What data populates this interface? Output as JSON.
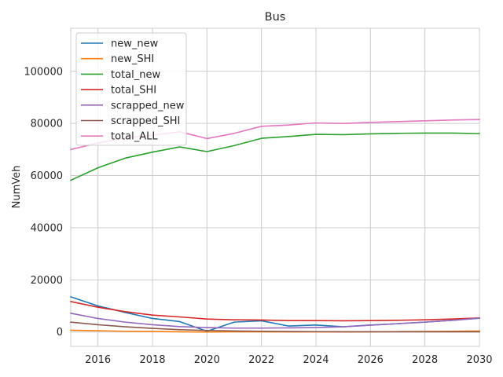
{
  "chart_data": {
    "type": "line",
    "title": "Bus",
    "xlabel": "",
    "ylabel": "NumVeh",
    "xlim": [
      2015,
      2030
    ],
    "ylim": [
      -5500,
      116500
    ],
    "xticks": [
      2016,
      2018,
      2020,
      2022,
      2024,
      2026,
      2028,
      2030
    ],
    "yticks": [
      0,
      20000,
      40000,
      60000,
      80000,
      100000
    ],
    "grid": true,
    "legend_position": "top-left",
    "x": [
      2015,
      2016,
      2017,
      2018,
      2019,
      2020,
      2021,
      2022,
      2023,
      2024,
      2025,
      2026,
      2027,
      2028,
      2029,
      2030
    ],
    "series": [
      {
        "name": "new_new",
        "color": "#1f77b4",
        "values": [
          13500,
          10000,
          7500,
          5200,
          4000,
          300,
          3800,
          4300,
          2300,
          2700,
          2000,
          2700,
          3200,
          3800,
          4500,
          5300
        ]
      },
      {
        "name": "new_SHI",
        "color": "#ff7f0e",
        "values": [
          700,
          500,
          300,
          200,
          100,
          0,
          100,
          100,
          50,
          50,
          50,
          100,
          150,
          200,
          300,
          400
        ]
      },
      {
        "name": "total_new",
        "color": "#2ca02c",
        "values": [
          58200,
          63000,
          66700,
          69000,
          71000,
          69200,
          71500,
          74300,
          75000,
          75800,
          75700,
          76000,
          76200,
          76300,
          76300,
          76100
        ]
      },
      {
        "name": "total_SHI",
        "color": "#d62728",
        "values": [
          11700,
          9500,
          7800,
          6500,
          5800,
          5000,
          4700,
          4600,
          4400,
          4400,
          4300,
          4400,
          4500,
          4700,
          5000,
          5400
        ]
      },
      {
        "name": "scrapped_new",
        "color": "#9467bd",
        "values": [
          7200,
          5200,
          3800,
          2800,
          2100,
          1700,
          1500,
          1500,
          1600,
          1700,
          2000,
          2600,
          3200,
          3800,
          4500,
          5300
        ]
      },
      {
        "name": "scrapped_SHI",
        "color": "#8c564b",
        "values": [
          3800,
          2800,
          2000,
          1400,
          900,
          600,
          400,
          300,
          200,
          150,
          100,
          100,
          100,
          100,
          100,
          100
        ]
      },
      {
        "name": "total_ALL",
        "color": "#e377c2",
        "values": [
          70000,
          72500,
          74500,
          75500,
          76800,
          74200,
          76200,
          78900,
          79400,
          80200,
          80000,
          80400,
          80700,
          81000,
          81300,
          81500
        ]
      }
    ]
  }
}
